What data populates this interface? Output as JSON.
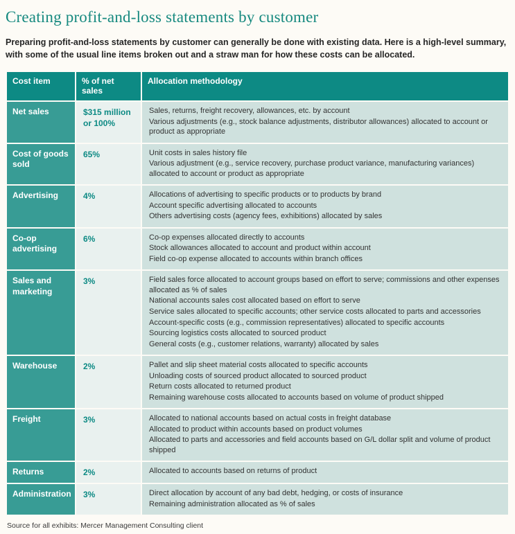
{
  "page": {
    "title": "Creating profit-and-loss statements by customer",
    "intro": "Preparing profit-and-loss statements by customer can generally be done with existing data. Here is a high-level summary, with some of the usual line items broken out and a straw man for how these costs can be allocated.",
    "source_note": "Source for all exhibits: Mercer Management Consulting client"
  },
  "colors": {
    "title_teal": "#16897f",
    "header_bg": "#0d8a84",
    "item_bg": "#389c95",
    "pct_bg": "#e9f1ef",
    "method_bg": "#cfe1de"
  },
  "table": {
    "headers": [
      "Cost item",
      "% of net sales",
      "Allocation methodology"
    ],
    "rows": [
      {
        "item": "Net sales",
        "pct": "$315 million or 100%",
        "methods": [
          "Sales, returns, freight recovery, allowances, etc. by account",
          "Various adjustments (e.g., stock balance adjustments, distributor allowances) allocated to account or product as appropriate"
        ]
      },
      {
        "item": "Cost of goods sold",
        "pct": "65%",
        "methods": [
          "Unit costs in sales history file",
          "Various adjustment (e.g., service recovery, purchase product variance, manufacturing variances) allocated to account or product as appropriate"
        ]
      },
      {
        "item": "Advertising",
        "pct": "4%",
        "methods": [
          "Allocations of advertising to specific products or to products by brand",
          "Account specific advertising allocated to accounts",
          "Others advertising costs (agency fees, exhibitions) allocated by sales"
        ]
      },
      {
        "item": "Co-op advertising",
        "pct": "6%",
        "methods": [
          "Co-op expenses allocated directly to accounts",
          "Stock allowances allocated to account and product within account",
          "Field co-op expense allocated to accounts within branch offices"
        ]
      },
      {
        "item": "Sales and marketing",
        "pct": "3%",
        "methods": [
          "Field sales force allocated to account groups based on effort to serve; commissions and other expenses allocated as % of sales",
          "National accounts sales cost allocated based on effort to serve",
          "Service sales allocated to specific accounts; other service costs allocated to parts and accessories",
          "Account-specific costs (e.g., commission representatives) allocated to specific accounts",
          "Sourcing logistics costs allocated to sourced product",
          "General costs (e.g., customer relations, warranty) allocated by sales"
        ]
      },
      {
        "item": "Warehouse",
        "pct": "2%",
        "methods": [
          "Pallet and slip sheet material costs allocated to specific accounts",
          "Unloading costs of sourced product allocated to sourced product",
          "Return costs allocated to returned product",
          "Remaining warehouse costs allocated to accounts based on volume of product shipped"
        ]
      },
      {
        "item": "Freight",
        "pct": "3%",
        "methods": [
          "Allocated to national accounts based on actual costs in freight database",
          "Allocated to product within accounts based on product volumes",
          "Allocated to parts and accessories and field accounts based on G/L dollar split and volume of product shipped"
        ]
      },
      {
        "item": "Returns",
        "pct": "2%",
        "methods": [
          "Allocated to accounts based on returns of product"
        ]
      },
      {
        "item": "Administration",
        "pct": "3%",
        "methods": [
          "Direct allocation by account of any bad debt, hedging, or costs of insurance",
          "Remaining administration allocated as % of sales"
        ]
      }
    ]
  }
}
